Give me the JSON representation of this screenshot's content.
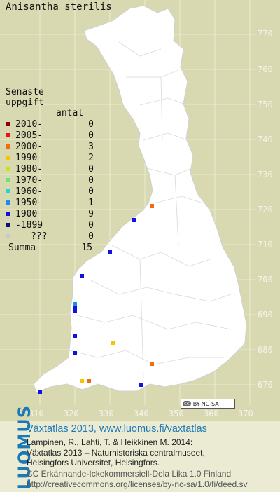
{
  "species": "Anisantha sterilis",
  "legend": {
    "title_line1": "Senaste",
    "title_line2": "uppgift",
    "count_header": "antal",
    "rows": [
      {
        "label": "2010-",
        "count": "0",
        "color": "#8b0000"
      },
      {
        "label": "2005-",
        "count": "0",
        "color": "#ee1111"
      },
      {
        "label": "2000-",
        "count": "3",
        "color": "#f26b12"
      },
      {
        "label": "1990-",
        "count": "2",
        "color": "#f6c400"
      },
      {
        "label": "1980-",
        "count": "0",
        "color": "#c7e51d"
      },
      {
        "label": "1970-",
        "count": "0",
        "color": "#6fe07a"
      },
      {
        "label": "1960-",
        "count": "0",
        "color": "#22d6d0"
      },
      {
        "label": "1950-",
        "count": "1",
        "color": "#1a8ef0"
      },
      {
        "label": "1900-",
        "count": "9",
        "color": "#1212e0"
      },
      {
        "label": "-1899",
        "count": "0",
        "color": "#10107a"
      },
      {
        "label": "???",
        "count": "0",
        "color": "#c8c8c8"
      }
    ],
    "summa_label": "Summa",
    "summa_count": "15"
  },
  "axes": {
    "y_ticks": [
      "770",
      "760",
      "750",
      "740",
      "730",
      "720",
      "710",
      "700",
      "690",
      "680",
      "670"
    ],
    "x_ticks": [
      "310",
      "320",
      "330",
      "340",
      "350",
      "360",
      "370"
    ]
  },
  "cc_badge": "BY-NC-SA",
  "cc_label": "cc",
  "logo": "LUOMUS",
  "footer": {
    "title": "Växtatlas 2013, www.luomus.fi/vaxtatlas",
    "cite_line1": "Lampinen, R., Lahti, T. & Heikkinen M. 2014:",
    "cite_line2": "Växtatlas 2013 – Naturhistoriska centralmuseet,",
    "cite_line3": "Helsingfors Universitet, Helsingfors.",
    "license_line1": "CC Erkännande-Ickekommersiell-Dela Lika 1.0 Finland",
    "license_line2": "http://creativecommons.org/licenses/by-nc-sa/1.0/fi/deed.sv"
  },
  "map_data": {
    "grid_units": "km (Finnish uniform grid, 10 km squares)",
    "x_range": [
      305,
      375
    ],
    "y_range": [
      664,
      778
    ],
    "records": [
      {
        "x": 342,
        "y": 721,
        "period": "2000-"
      },
      {
        "x": 342,
        "y": 676,
        "period": "2000-"
      },
      {
        "x": 324,
        "y": 671,
        "period": "2000-"
      },
      {
        "x": 322,
        "y": 671,
        "period": "1990-"
      },
      {
        "x": 331,
        "y": 682,
        "period": "1990-"
      },
      {
        "x": 320,
        "y": 693,
        "period": "1950-"
      },
      {
        "x": 337,
        "y": 717,
        "period": "1900-"
      },
      {
        "x": 330,
        "y": 708,
        "period": "1900-"
      },
      {
        "x": 322,
        "y": 701,
        "period": "1900-"
      },
      {
        "x": 320,
        "y": 692,
        "period": "1900-"
      },
      {
        "x": 320,
        "y": 691,
        "period": "1900-"
      },
      {
        "x": 320,
        "y": 684,
        "period": "1900-"
      },
      {
        "x": 320,
        "y": 679,
        "period": "1900-"
      },
      {
        "x": 339,
        "y": 670,
        "period": "1900-"
      },
      {
        "x": 310,
        "y": 668,
        "period": "1900-"
      }
    ]
  }
}
